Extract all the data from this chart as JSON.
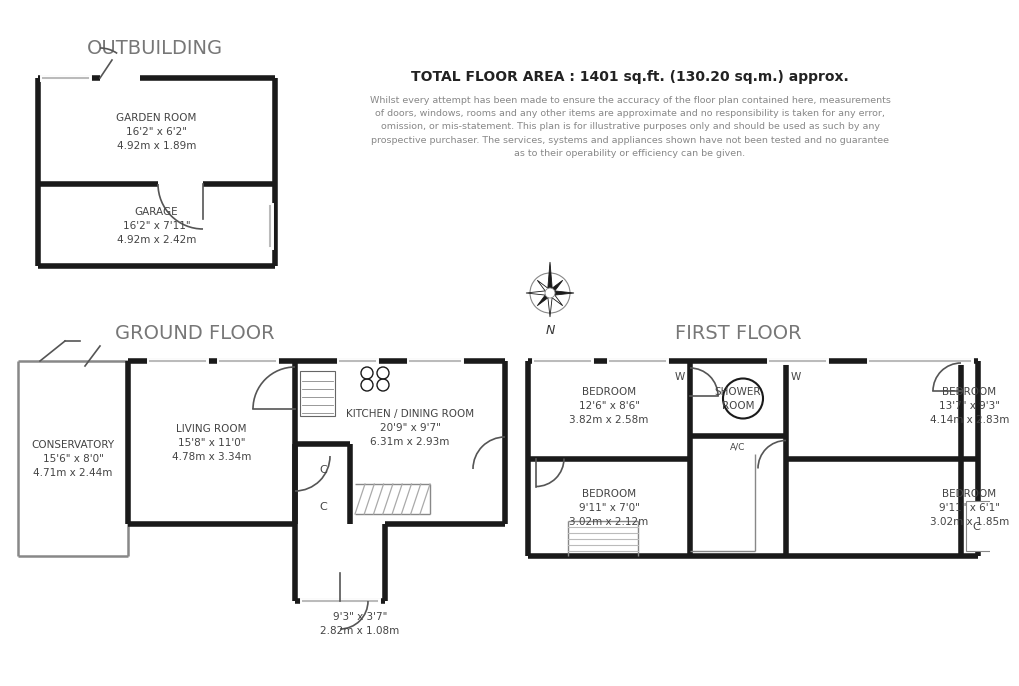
{
  "bg_color": "#ffffff",
  "wall_color": "#1a1a1a",
  "wall_lw": 4.0,
  "thin_lw": 1.2,
  "win_color": "#bbbbbb",
  "door_color": "#555555",
  "label_color": "#444444",
  "section_color": "#777777",
  "title": "OUTBUILDING",
  "ground_floor_label": "GROUND FLOOR",
  "first_floor_label": "FIRST FLOOR",
  "total_area_text": "TOTAL FLOOR AREA : 1401 sq.ft. (130.20 sq.m.) approx.",
  "disclaimer_lines": [
    "Whilst every attempt has been made to ensure the accuracy of the floor plan contained here, measurements",
    "of doors, windows, rooms and any other items are approximate and no responsibility is taken for any error,",
    "omission, or mis-statement. This plan is for illustrative purposes only and should be used as such by any",
    "prospective purchaser. The services, systems and appliances shown have not been tested and no guarantee",
    "as to their operability or efficiency can be given."
  ],
  "rooms": {
    "garden_room": {
      "label": "GARDEN ROOM",
      "dim1": "16'2\" x 6'2\"",
      "dim2": "4.92m x 1.89m"
    },
    "garage": {
      "label": "GARAGE",
      "dim1": "16'2\" x 7'11\"",
      "dim2": "4.92m x 2.42m"
    },
    "conservatory": {
      "label": "CONSERVATORY",
      "dim1": "15'6\" x 8'0\"",
      "dim2": "4.71m x 2.44m"
    },
    "living_room": {
      "label": "LIVING ROOM",
      "dim1": "15'8\" x 11'0\"",
      "dim2": "4.78m x 3.34m"
    },
    "kitchen": {
      "label": "KITCHEN / DINING ROOM",
      "dim1": "20'9\" x 9'7\"",
      "dim2": "6.31m x 2.93m"
    },
    "hallway": {
      "label": "",
      "dim1": "9'3\" x 3'7\"",
      "dim2": "2.82m x 1.08m"
    },
    "bedroom1": {
      "label": "BEDROOM",
      "dim1": "12'6\" x 8'6\"",
      "dim2": "3.82m x 2.58m"
    },
    "bedroom2": {
      "label": "BEDROOM",
      "dim1": "13'7\" x 9'3\"",
      "dim2": "4.14m x 2.83m"
    },
    "bedroom3": {
      "label": "BEDROOM",
      "dim1": "9'11\" x 7'0\"",
      "dim2": "3.02m x 2.12m"
    },
    "bedroom4": {
      "label": "BEDROOM",
      "dim1": "9'11\" x 6'1\"",
      "dim2": "3.02m x 1.85m"
    },
    "shower_room": {
      "label": "SHOWER\nROOM",
      "dim1": "",
      "dim2": ""
    }
  },
  "label_fontsize": 7.5,
  "section_fontsize": 14,
  "area_fontsize": 10,
  "disclaimer_fontsize": 6.8
}
